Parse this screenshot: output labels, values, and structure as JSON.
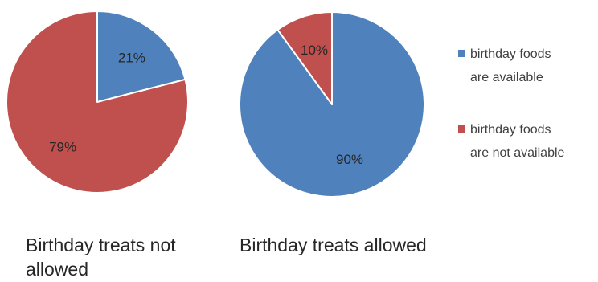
{
  "chart_data": [
    {
      "type": "pie",
      "title": "Birthday treats not allowed",
      "categories": [
        "birthday foods are available",
        "birthday foods are not available"
      ],
      "values": [
        21,
        79
      ],
      "data_labels": [
        "21%",
        "79%"
      ],
      "colors": [
        "#4f81bd",
        "#c0504d"
      ]
    },
    {
      "type": "pie",
      "title": "Birthday treats allowed",
      "categories": [
        "birthday foods are available",
        "birthday foods are not available"
      ],
      "values": [
        90,
        10
      ],
      "data_labels": [
        "90%",
        "10%"
      ],
      "colors": [
        "#4f81bd",
        "#c0504d"
      ]
    }
  ],
  "legend": {
    "placement": "right",
    "items": [
      {
        "line1": "birthday foods",
        "line2": "are available",
        "color": "#4f81bd"
      },
      {
        "line1": "birthday foods",
        "line2": "are not available",
        "color": "#c0504d"
      }
    ]
  }
}
